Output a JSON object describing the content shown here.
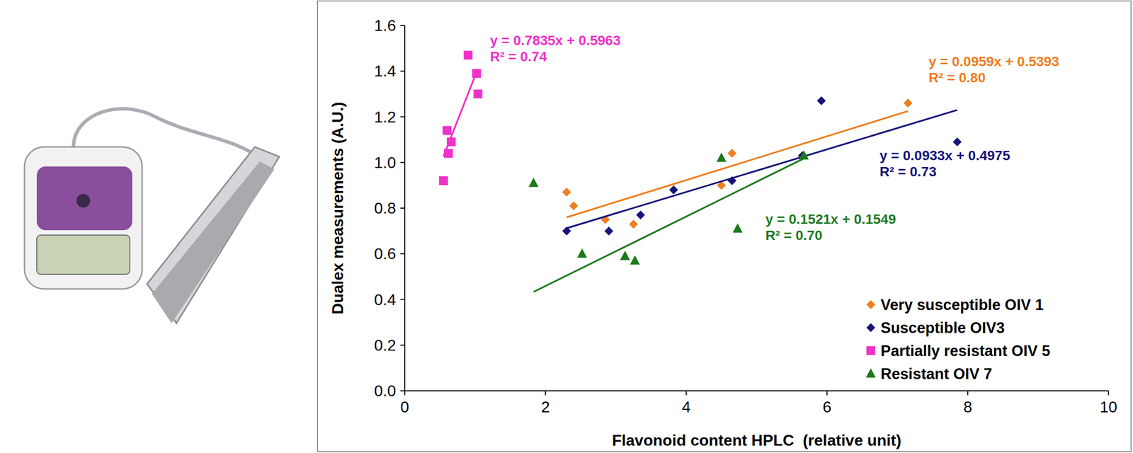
{
  "chart_data": {
    "type": "scatter",
    "xlabel": "Flavonoid content HPLC  (relative unit)",
    "ylabel": "Dualex measurements (A.U.)",
    "xlim": [
      0,
      10
    ],
    "xticks": [
      0,
      2,
      4,
      6,
      8,
      10
    ],
    "ylim": [
      0,
      1.6
    ],
    "yticks": [
      {
        "value": 0,
        "label": "0.0"
      },
      0.2,
      0.4,
      0.6,
      0.8,
      {
        "value": 1,
        "label": "1.0"
      },
      1.2,
      1.4,
      1.6
    ],
    "legend": "lower right",
    "series": [
      {
        "name": "Very susceptible OIV 1",
        "color": "#f07d1e",
        "marker": "diamond",
        "x": [
          2.3,
          2.4,
          2.85,
          3.25,
          4.5,
          4.65,
          7.15
        ],
        "values": [
          0.87,
          0.81,
          0.75,
          0.73,
          0.9,
          1.04,
          1.26
        ],
        "fit": {
          "slope": 0.0959,
          "intercept": 0.5393,
          "x_range": [
            2.3,
            7.15
          ],
          "equation": "y = 0.0959x + 0.5393",
          "r2_label": "R² = 0.80"
        }
      },
      {
        "name": "Susceptible OIV3",
        "color": "#14147a",
        "marker": "diamond",
        "x": [
          2.3,
          2.9,
          3.35,
          3.82,
          4.65,
          5.65,
          5.92,
          7.85
        ],
        "values": [
          0.7,
          0.7,
          0.77,
          0.88,
          0.92,
          1.03,
          1.27,
          1.09
        ],
        "fit": {
          "slope": 0.0933,
          "intercept": 0.4975,
          "x_range": [
            2.3,
            7.85
          ],
          "equation": "y = 0.0933x + 0.4975",
          "r2_label": "R² = 0.73"
        }
      },
      {
        "name": "Partially resistant OIV 5",
        "color": "#f030c8",
        "marker": "square",
        "x": [
          0.55,
          0.6,
          0.62,
          0.66,
          0.9,
          1.02,
          1.04
        ],
        "values": [
          0.92,
          1.14,
          1.04,
          1.09,
          1.47,
          1.39,
          1.3
        ],
        "fit": {
          "slope": 0.7835,
          "intercept": 0.5963,
          "x_range": [
            0.55,
            1.03
          ],
          "equation": "y = 0.7835x + 0.5963",
          "r2_label": "R² = 0.74"
        }
      },
      {
        "name": "Resistant OIV 7",
        "color": "#1c7a1c",
        "marker": "triangle",
        "x": [
          1.83,
          2.52,
          3.13,
          3.27,
          4.5,
          4.73,
          5.67
        ],
        "values": [
          0.91,
          0.6,
          0.59,
          0.57,
          1.02,
          0.71,
          1.03
        ],
        "fit": {
          "slope": 0.1521,
          "intercept": 0.1549,
          "x_range": [
            1.83,
            5.67
          ],
          "equation": "y = 0.1521x + 0.1549",
          "r2_label": "R² = 0.70"
        }
      }
    ]
  }
}
